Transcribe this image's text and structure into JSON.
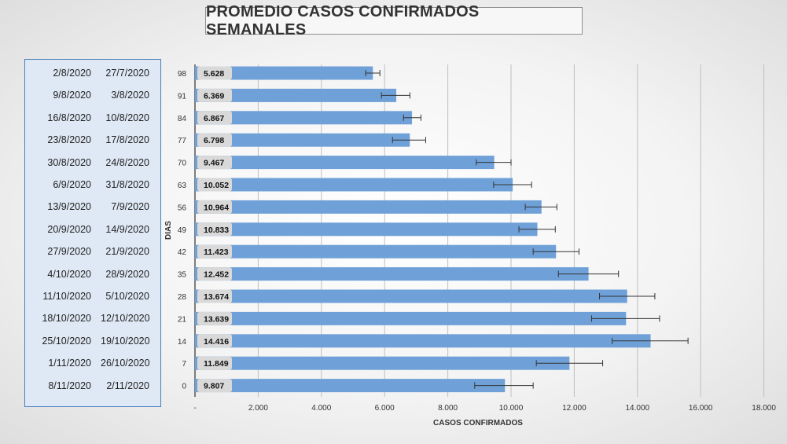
{
  "chart_data": {
    "type": "bar",
    "orientation": "horizontal",
    "title": "PROMEDIO CASOS CONFIRMADOS SEMANALES",
    "xlabel": "CASOS CONFIRMADOS",
    "ylabel": "DIAS",
    "xlim": [
      0,
      18000
    ],
    "x_ticks": [
      "-",
      "2.000",
      "4.000",
      "6.000",
      "8.000",
      "10.000",
      "12.000",
      "14.000",
      "16.000",
      "18.000"
    ],
    "x_tick_values": [
      0,
      2000,
      4000,
      6000,
      8000,
      10000,
      12000,
      14000,
      16000,
      18000
    ],
    "grid": "vertical",
    "bar_color": "#6fa1d8",
    "categories": [
      "98",
      "91",
      "84",
      "77",
      "70",
      "63",
      "56",
      "49",
      "42",
      "35",
      "28",
      "21",
      "14",
      "7",
      "0"
    ],
    "values": [
      5628,
      6369,
      6867,
      6798,
      9467,
      10052,
      10964,
      10833,
      11423,
      12452,
      13674,
      13639,
      14416,
      11849,
      9807
    ],
    "value_labels": [
      "5.628",
      "6.369",
      "6.867",
      "6.798",
      "9.467",
      "10.052",
      "10.964",
      "10.833",
      "11.423",
      "12.452",
      "13.674",
      "13.639",
      "14.416",
      "11.849",
      "9.807"
    ],
    "error_bars": [
      [
        5400,
        5850
      ],
      [
        5900,
        6800
      ],
      [
        6600,
        7150
      ],
      [
        6250,
        7300
      ],
      [
        8900,
        10000
      ],
      [
        9450,
        10650
      ],
      [
        10450,
        11450
      ],
      [
        10250,
        11400
      ],
      [
        10700,
        12150
      ],
      [
        11500,
        13400
      ],
      [
        12800,
        14550
      ],
      [
        12550,
        14700
      ],
      [
        13200,
        15600
      ],
      [
        10800,
        12900
      ],
      [
        8850,
        10700
      ]
    ],
    "date_ranges": [
      {
        "end": "2/8/2020",
        "start": "27/7/2020"
      },
      {
        "end": "9/8/2020",
        "start": "3/8/2020"
      },
      {
        "end": "16/8/2020",
        "start": "10/8/2020"
      },
      {
        "end": "23/8/2020",
        "start": "17/8/2020"
      },
      {
        "end": "30/8/2020",
        "start": "24/8/2020"
      },
      {
        "end": "6/9/2020",
        "start": "31/8/2020"
      },
      {
        "end": "13/9/2020",
        "start": "7/9/2020"
      },
      {
        "end": "20/9/2020",
        "start": "14/9/2020"
      },
      {
        "end": "27/9/2020",
        "start": "21/9/2020"
      },
      {
        "end": "4/10/2020",
        "start": "28/9/2020"
      },
      {
        "end": "11/10/2020",
        "start": "5/10/2020"
      },
      {
        "end": "18/10/2020",
        "start": "12/10/2020"
      },
      {
        "end": "25/10/2020",
        "start": "19/10/2020"
      },
      {
        "end": "1/11/2020",
        "start": "26/10/2020"
      },
      {
        "end": "8/11/2020",
        "start": "2/11/2020"
      }
    ]
  }
}
